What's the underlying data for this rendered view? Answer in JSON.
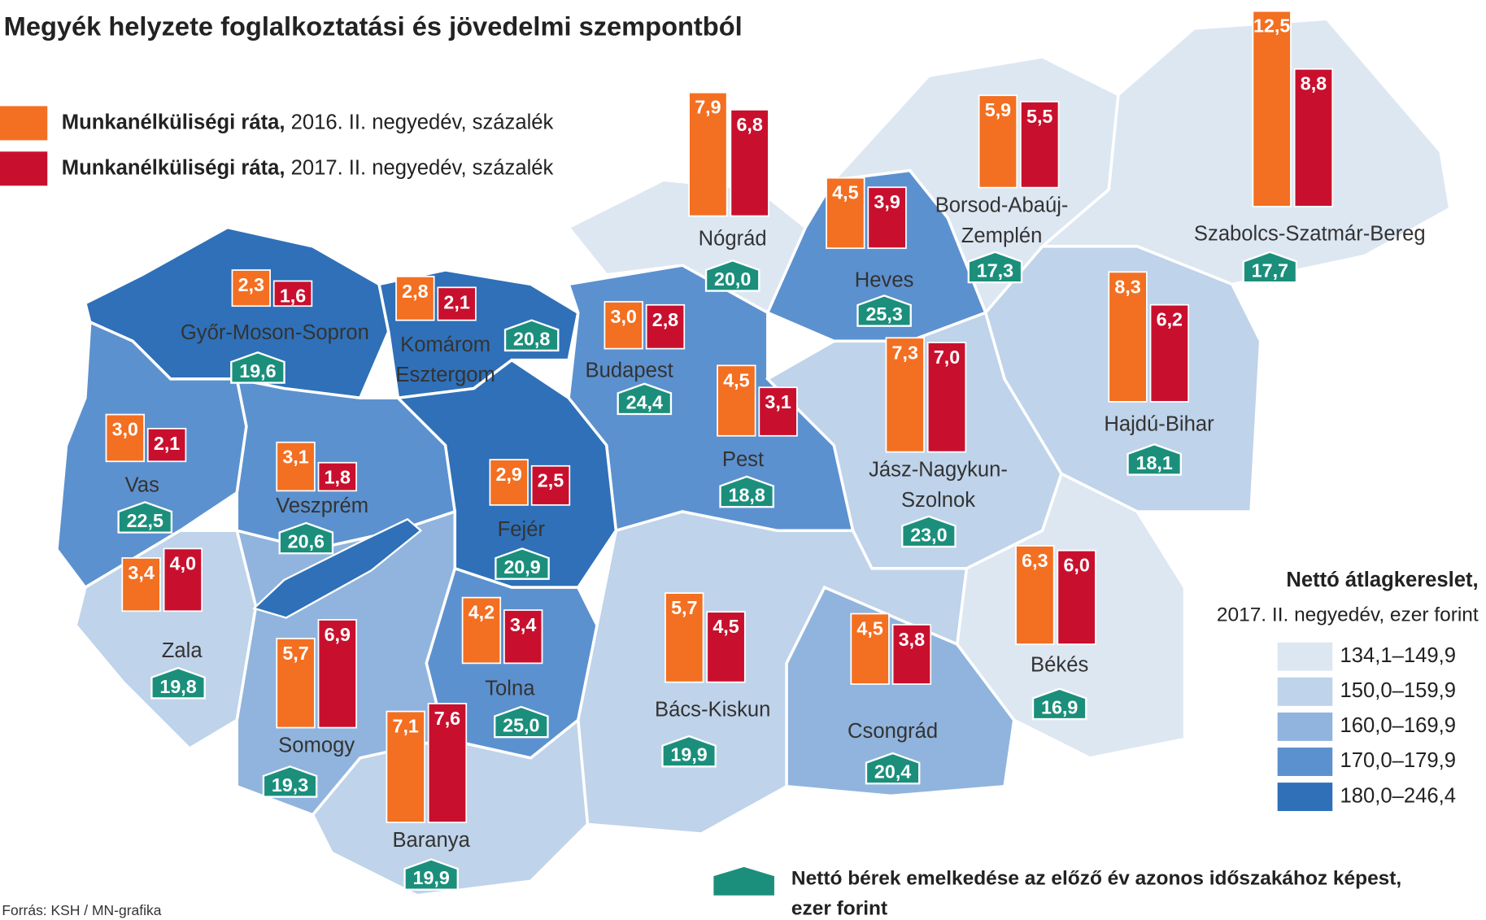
{
  "title": "Megyék helyzete foglalkoztatási és jövedelmi szempontból",
  "legend": {
    "series": [
      {
        "name_bold": "Munkanélküliségi ráta,",
        "name_rest": " 2016. II. negyedév, százalék",
        "color": "#f36f21"
      },
      {
        "name_bold": "Munkanélküliségi ráta,",
        "name_rest": " 2017. II. negyedév, százalék",
        "color": "#c8102e"
      }
    ],
    "shading": {
      "title": "Nettó átlagkereslet,",
      "subtitle": "2017. II. negyedév, ezer forint",
      "ranges": [
        {
          "label": "134,1–149,9",
          "color": "#dde7f2"
        },
        {
          "label": "150,0–159,9",
          "color": "#bfd3ea"
        },
        {
          "label": "160,0–169,9",
          "color": "#90b4dd"
        },
        {
          "label": "170,0–179,9",
          "color": "#5c91cf"
        },
        {
          "label": "180,0–246,4",
          "color": "#2f70b8"
        }
      ]
    },
    "wage": {
      "label_lines": [
        "Nettó bérek emelkedése az előző év azonos időszakához képest,",
        "ezer forint"
      ],
      "color": "#1b8f7b"
    }
  },
  "counties": [
    {
      "name_lines": [
        "Nógrád"
      ],
      "values": [
        7.9,
        6.8
      ],
      "value_labels": [
        "7,9",
        "6,8"
      ],
      "wage": {
        "value": 20.0,
        "label": "20,0"
      },
      "color": "#dde7f2"
    },
    {
      "name_lines": [
        "Borsod-Abaúj-",
        "Zemplén"
      ],
      "values": [
        5.9,
        5.5
      ],
      "value_labels": [
        "5,9",
        "5,5"
      ],
      "wage": {
        "value": 17.3,
        "label": "17,3"
      },
      "color": "#dde7f2"
    },
    {
      "name_lines": [
        "Szabolcs-Szatmár-Bereg"
      ],
      "values": [
        12.5,
        8.8
      ],
      "value_labels": [
        "12,5",
        "8,8"
      ],
      "wage": {
        "value": 17.7,
        "label": "17,7"
      },
      "color": "#dde7f2"
    },
    {
      "name_lines": [
        "Heves"
      ],
      "values": [
        4.5,
        3.9
      ],
      "value_labels": [
        "4,5",
        "3,9"
      ],
      "wage": {
        "value": 25.3,
        "label": "25,3"
      },
      "color": "#5c91cf"
    },
    {
      "name_lines": [
        "Győr-Moson-Sopron"
      ],
      "values": [
        2.3,
        1.6
      ],
      "value_labels": [
        "2,3",
        "1,6"
      ],
      "wage": {
        "value": 19.6,
        "label": "19,6"
      },
      "color": "#2f70b8"
    },
    {
      "name_lines": [
        "Komárom",
        "Esztergom"
      ],
      "values": [
        2.8,
        2.1
      ],
      "value_labels": [
        "2,8",
        "2,1"
      ],
      "wage": {
        "value": 20.8,
        "label": "20,8"
      },
      "color": "#2f70b8"
    },
    {
      "name_lines": [
        "Budapest"
      ],
      "values": [
        3.0,
        2.8
      ],
      "value_labels": [
        "3,0",
        "2,8"
      ],
      "wage": {
        "value": 24.4,
        "label": "24,4"
      },
      "color": "#5c91cf"
    },
    {
      "name_lines": [
        "Pest"
      ],
      "values": [
        4.5,
        3.1
      ],
      "value_labels": [
        "4,5",
        "3,1"
      ],
      "wage": {
        "value": 18.8,
        "label": "18,8"
      },
      "color": "#5c91cf"
    },
    {
      "name_lines": [
        "Jász-Nagykun-",
        "Szolnok"
      ],
      "values": [
        7.3,
        7.0
      ],
      "value_labels": [
        "7,3",
        "7,0"
      ],
      "wage": {
        "value": 23.0,
        "label": "23,0"
      },
      "color": "#bfd3ea"
    },
    {
      "name_lines": [
        "Hajdú-Bihar"
      ],
      "values": [
        8.3,
        6.2
      ],
      "value_labels": [
        "8,3",
        "6,2"
      ],
      "wage": {
        "value": 18.1,
        "label": "18,1"
      },
      "color": "#bfd3ea"
    },
    {
      "name_lines": [
        "Vas"
      ],
      "values": [
        3.0,
        2.1
      ],
      "value_labels": [
        "3,0",
        "2,1"
      ],
      "wage": {
        "value": 22.5,
        "label": "22,5"
      },
      "color": "#5c91cf"
    },
    {
      "name_lines": [
        "Veszprém"
      ],
      "values": [
        3.1,
        1.8
      ],
      "value_labels": [
        "3,1",
        "1,8"
      ],
      "wage": {
        "value": 20.6,
        "label": "20,6"
      },
      "color": "#5c91cf"
    },
    {
      "name_lines": [
        "Fejér"
      ],
      "values": [
        2.9,
        2.5
      ],
      "value_labels": [
        "2,9",
        "2,5"
      ],
      "wage": {
        "value": 20.9,
        "label": "20,9"
      },
      "color": "#2f70b8"
    },
    {
      "name_lines": [
        "Zala"
      ],
      "values": [
        3.4,
        4.0
      ],
      "value_labels": [
        "3,4",
        "4,0"
      ],
      "wage": {
        "value": 19.8,
        "label": "19,8"
      },
      "color": "#bfd3ea"
    },
    {
      "name_lines": [
        "Somogy"
      ],
      "values": [
        5.7,
        6.9
      ],
      "value_labels": [
        "5,7",
        "6,9"
      ],
      "wage": {
        "value": 19.3,
        "label": "19,3"
      },
      "color": "#90b4dd"
    },
    {
      "name_lines": [
        "Tolna"
      ],
      "values": [
        4.2,
        3.4
      ],
      "value_labels": [
        "4,2",
        "3,4"
      ],
      "wage": {
        "value": 25.0,
        "label": "25,0"
      },
      "color": "#5c91cf"
    },
    {
      "name_lines": [
        "Bács-Kiskun"
      ],
      "values": [
        5.7,
        4.5
      ],
      "value_labels": [
        "5,7",
        "4,5"
      ],
      "wage": {
        "value": 19.9,
        "label": "19,9"
      },
      "color": "#bfd3ea"
    },
    {
      "name_lines": [
        "Csongrád"
      ],
      "values": [
        4.5,
        3.8
      ],
      "value_labels": [
        "4,5",
        "3,8"
      ],
      "wage": {
        "value": 20.4,
        "label": "20,4"
      },
      "color": "#90b4dd"
    },
    {
      "name_lines": [
        "Békés"
      ],
      "values": [
        6.3,
        6.0
      ],
      "value_labels": [
        "6,3",
        "6,0"
      ],
      "wage": {
        "value": 16.9,
        "label": "16,9"
      },
      "color": "#dde7f2"
    },
    {
      "name_lines": [
        "Baranya"
      ],
      "values": [
        7.1,
        7.6
      ],
      "value_labels": [
        "7,1",
        "7,6"
      ],
      "wage": {
        "value": 19.9,
        "label": "19,9"
      },
      "color": "#bfd3ea"
    }
  ],
  "source": "Forrás: KSH / MN-grafika"
}
